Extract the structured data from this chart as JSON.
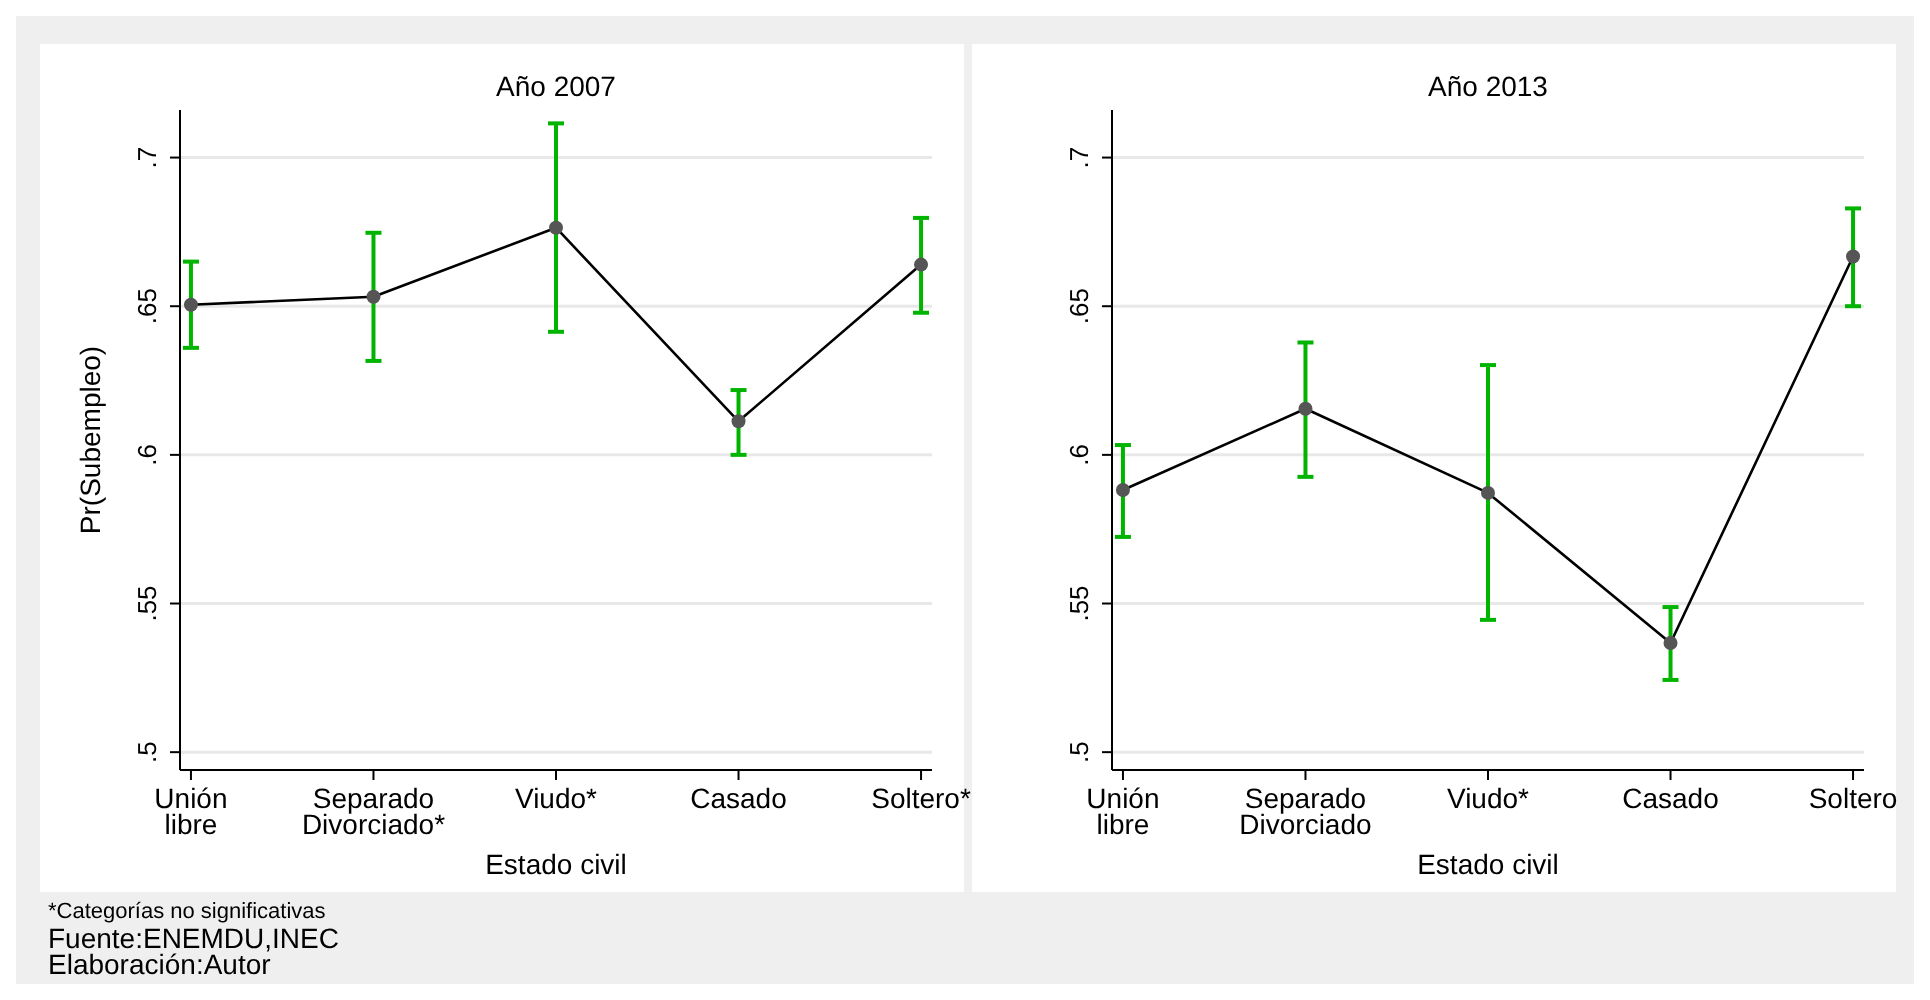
{
  "chart_data": [
    {
      "type": "line",
      "title": "Año 2007",
      "xlabel": "Estado civil",
      "ylabel": "Pr(Subempleo)",
      "categories": [
        "Unión\nlibre",
        "Separado\nDivorciado*",
        "Viudo*",
        "Casado",
        "Soltero*"
      ],
      "series": [
        {
          "color": "#000000",
          "values": [
            0.6505,
            0.6532,
            0.6764,
            0.6113,
            0.664
          ],
          "errors": [
            [
              0.636,
              0.665
            ],
            [
              0.6316,
              0.6747
            ],
            [
              0.6414,
              0.7115
            ],
            [
              0.6,
              0.6218
            ],
            [
              0.6478,
              0.6797
            ]
          ]
        }
      ],
      "ylim": [
        0.494,
        0.716
      ],
      "yticks": [
        {
          "value": 0.5,
          "label": ".5"
        },
        {
          "value": 0.55,
          "label": ".55"
        },
        {
          "value": 0.6,
          "label": ".6"
        },
        {
          "value": 0.65,
          "label": ".65"
        },
        {
          "value": 0.7,
          "label": ".7"
        }
      ],
      "grid": "y",
      "marker": "circle",
      "line_style": "solid",
      "annotations": [
        "*Categorías no significativas",
        "Fuente:ENEMDU,INEC",
        "Elaboración:Autor"
      ]
    },
    {
      "type": "line",
      "title": "Año 2013",
      "xlabel": "Estado civil",
      "categories": [
        "Unión\nlibre",
        "Separado\nDivorciado",
        "Viudo*",
        "Casado",
        "Soltero"
      ],
      "series": [
        {
          "color": "#000000",
          "values": [
            0.5882,
            0.6155,
            0.5872,
            0.5367,
            0.6667
          ],
          "errors": [
            [
              0.5724,
              0.6033
            ],
            [
              0.5926,
              0.6378
            ],
            [
              0.5445,
              0.6302
            ],
            [
              0.5243,
              0.5488
            ],
            [
              0.65,
              0.6829
            ]
          ]
        }
      ],
      "ylim": [
        0.494,
        0.716
      ],
      "yticks": [
        {
          "value": 0.5,
          "label": ".5"
        },
        {
          "value": 0.55,
          "label": ".55"
        },
        {
          "value": 0.6,
          "label": ".6"
        },
        {
          "value": 0.65,
          "label": ".65"
        },
        {
          "value": 0.7,
          "label": ".7"
        }
      ],
      "grid": "y",
      "marker": "circle",
      "line_style": "solid"
    }
  ]
}
